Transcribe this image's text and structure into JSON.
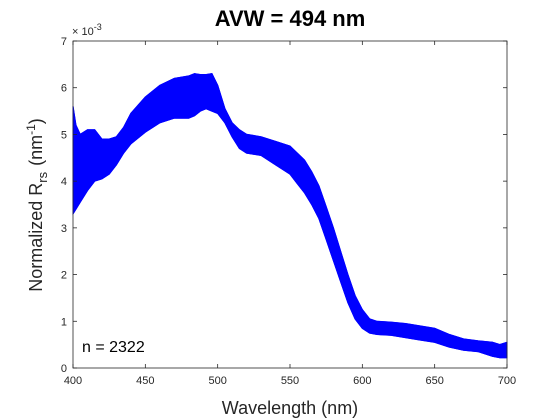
{
  "chart_data": {
    "type": "area",
    "title": "AVW = 494 nm",
    "xlabel": "Wavelength (nm)",
    "ylabel": {
      "prefix": "Normalized R",
      "subscript": "rs",
      "unit_prefix": "(nm",
      "unit_superscript": "-1",
      "unit_suffix": ")"
    },
    "y_exponent_label": "× 10",
    "y_exponent": "-3",
    "annotation": "n = 2322",
    "xlim": [
      400,
      700
    ],
    "ylim": [
      0,
      7
    ],
    "xticks": [
      400,
      450,
      500,
      550,
      600,
      650,
      700
    ],
    "yticks": [
      0,
      1,
      2,
      3,
      4,
      5,
      6,
      7
    ],
    "grid": false,
    "color": "#0000ff",
    "series": [
      {
        "x": [
          400,
          402,
          405,
          410,
          415,
          420,
          425,
          430,
          435,
          440,
          450,
          460,
          470,
          480,
          484,
          488,
          492,
          496,
          500,
          505,
          510,
          515,
          520,
          530,
          540,
          550,
          555,
          560,
          565,
          570,
          575,
          580,
          585,
          590,
          595,
          600,
          605,
          610,
          620,
          630,
          640,
          650,
          660,
          670,
          680,
          690,
          695,
          700
        ],
        "values": [
          5.6,
          5.2,
          5.0,
          5.1,
          5.1,
          4.9,
          4.9,
          4.95,
          5.15,
          5.45,
          5.8,
          6.05,
          6.2,
          6.25,
          6.3,
          6.28,
          6.28,
          6.3,
          6.05,
          5.55,
          5.25,
          5.1,
          5.0,
          4.95,
          4.85,
          4.75,
          4.6,
          4.45,
          4.2,
          3.9,
          3.45,
          3.0,
          2.5,
          2.0,
          1.55,
          1.25,
          1.05,
          1.0,
          0.98,
          0.95,
          0.9,
          0.85,
          0.72,
          0.62,
          0.58,
          0.55,
          0.5,
          0.55
        ]
      },
      {
        "x": [
          400,
          402,
          405,
          410,
          415,
          420,
          425,
          430,
          435,
          440,
          450,
          460,
          470,
          480,
          484,
          488,
          492,
          496,
          500,
          505,
          510,
          515,
          520,
          530,
          540,
          550,
          555,
          560,
          565,
          570,
          575,
          580,
          585,
          590,
          595,
          600,
          605,
          610,
          620,
          630,
          640,
          650,
          660,
          670,
          680,
          690,
          695,
          700
        ],
        "values": [
          3.3,
          3.4,
          3.55,
          3.8,
          4.0,
          4.05,
          4.15,
          4.35,
          4.6,
          4.8,
          5.05,
          5.25,
          5.35,
          5.35,
          5.4,
          5.5,
          5.55,
          5.5,
          5.45,
          5.25,
          4.95,
          4.7,
          4.6,
          4.55,
          4.35,
          4.15,
          3.95,
          3.75,
          3.5,
          3.2,
          2.75,
          2.3,
          1.85,
          1.4,
          1.05,
          0.85,
          0.75,
          0.72,
          0.7,
          0.65,
          0.6,
          0.55,
          0.45,
          0.38,
          0.35,
          0.25,
          0.22,
          0.22
        ]
      }
    ]
  }
}
